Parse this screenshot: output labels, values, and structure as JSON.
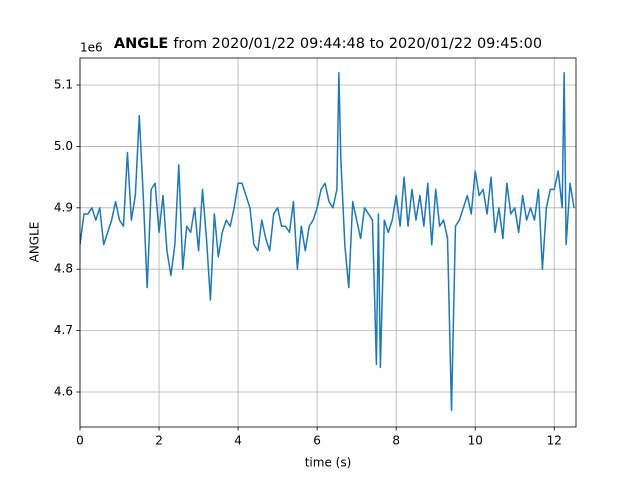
{
  "chart_data": {
    "type": "line",
    "title_bold": "ANGLE",
    "title_rest": "from 2020/01/22 09:44:48 to 2020/01/22 09:45:00",
    "offset_text": "1e6",
    "xlabel": "time (s)",
    "ylabel": "ANGLE",
    "color": "#1f77b4",
    "grid": true,
    "xlim": [
      0,
      12.55
    ],
    "ylim": [
      4.543,
      5.144
    ],
    "xticks": [
      0,
      2,
      4,
      6,
      8,
      10,
      12
    ],
    "yticks": [
      4.6,
      4.7,
      4.8,
      4.9,
      {
        "value": 5,
        "label": "5.0"
      },
      5.1
    ],
    "x": [
      0.0,
      0.1,
      0.2,
      0.3,
      0.4,
      0.5,
      0.6,
      0.7,
      0.8,
      0.9,
      1.0,
      1.1,
      1.2,
      1.3,
      1.4,
      1.5,
      1.6,
      1.7,
      1.8,
      1.9,
      2.0,
      2.1,
      2.2,
      2.3,
      2.4,
      2.5,
      2.6,
      2.7,
      2.8,
      2.9,
      3.0,
      3.1,
      3.2,
      3.3,
      3.4,
      3.5,
      3.6,
      3.7,
      3.8,
      3.9,
      4.0,
      4.1,
      4.2,
      4.3,
      4.4,
      4.5,
      4.6,
      4.7,
      4.8,
      4.9,
      5.0,
      5.1,
      5.2,
      5.3,
      5.4,
      5.5,
      5.6,
      5.7,
      5.8,
      5.9,
      6.0,
      6.1,
      6.2,
      6.3,
      6.4,
      6.5,
      6.55,
      6.6,
      6.7,
      6.8,
      6.9,
      7.0,
      7.1,
      7.2,
      7.3,
      7.4,
      7.5,
      7.55,
      7.6,
      7.7,
      7.8,
      7.9,
      8.0,
      8.1,
      8.2,
      8.3,
      8.4,
      8.5,
      8.6,
      8.7,
      8.8,
      8.9,
      9.0,
      9.1,
      9.2,
      9.3,
      9.4,
      9.5,
      9.6,
      9.7,
      9.8,
      9.9,
      10.0,
      10.1,
      10.2,
      10.3,
      10.4,
      10.5,
      10.6,
      10.7,
      10.8,
      10.9,
      11.0,
      11.1,
      11.2,
      11.3,
      11.4,
      11.5,
      11.6,
      11.7,
      11.8,
      11.9,
      12.0,
      12.1,
      12.2,
      12.25,
      12.3,
      12.4,
      12.5
    ],
    "values": [
      4.84,
      4.89,
      4.89,
      4.9,
      4.88,
      4.9,
      4.84,
      4.86,
      4.88,
      4.91,
      4.88,
      4.87,
      4.99,
      4.88,
      4.92,
      5.05,
      4.92,
      4.77,
      4.93,
      4.94,
      4.86,
      4.92,
      4.83,
      4.79,
      4.84,
      4.97,
      4.8,
      4.87,
      4.86,
      4.9,
      4.83,
      4.93,
      4.85,
      4.75,
      4.89,
      4.82,
      4.86,
      4.88,
      4.87,
      4.9,
      4.94,
      4.94,
      4.92,
      4.9,
      4.84,
      4.83,
      4.88,
      4.85,
      4.83,
      4.89,
      4.9,
      4.87,
      4.87,
      4.86,
      4.91,
      4.8,
      4.87,
      4.83,
      4.87,
      4.88,
      4.9,
      4.93,
      4.94,
      4.91,
      4.9,
      4.93,
      5.12,
      4.98,
      4.84,
      4.77,
      4.91,
      4.88,
      4.85,
      4.9,
      4.89,
      4.88,
      4.645,
      4.89,
      4.64,
      4.88,
      4.86,
      4.88,
      4.92,
      4.87,
      4.95,
      4.87,
      4.93,
      4.88,
      4.92,
      4.87,
      4.94,
      4.84,
      4.93,
      4.87,
      4.88,
      4.85,
      4.57,
      4.87,
      4.88,
      4.9,
      4.92,
      4.89,
      4.96,
      4.92,
      4.93,
      4.89,
      4.95,
      4.86,
      4.9,
      4.85,
      4.94,
      4.89,
      4.9,
      4.86,
      4.92,
      4.88,
      4.9,
      4.88,
      4.93,
      4.8,
      4.9,
      4.93,
      4.93,
      4.96,
      4.9,
      5.12,
      4.84,
      4.94,
      4.9
    ]
  }
}
